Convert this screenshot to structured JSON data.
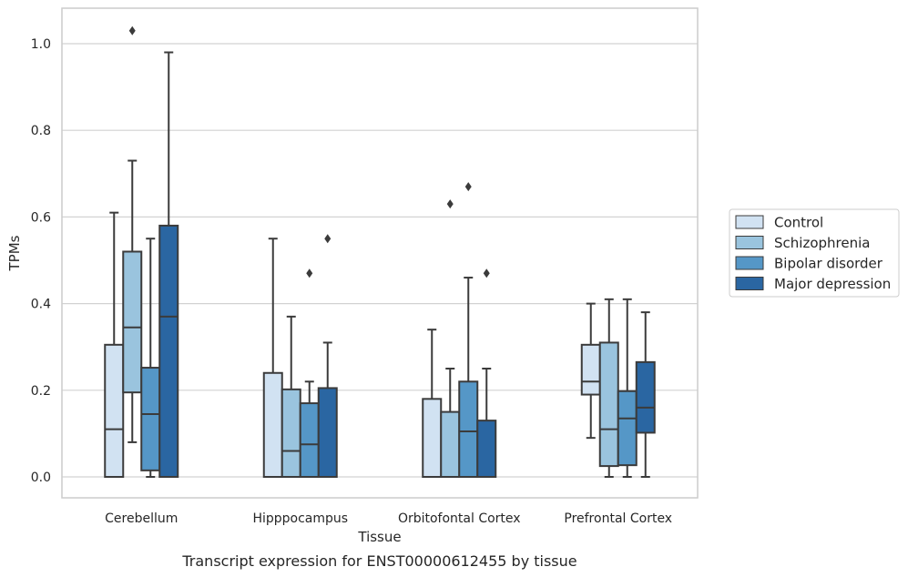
{
  "chart_data": {
    "type": "box",
    "caption": "Transcript expression for ENST00000612455 by tissue",
    "xlabel": "Tissue",
    "ylabel": "TPMs",
    "ylim": [
      -0.05,
      1.08
    ],
    "yticks": [
      0.0,
      0.2,
      0.4,
      0.6,
      0.8,
      1.0
    ],
    "ytick_labels": [
      "0.0",
      "0.2",
      "0.4",
      "0.6",
      "0.8",
      "1.0"
    ],
    "grid": "horizontal",
    "legend_position": "right",
    "categories": [
      "Cerebellum",
      "Hipppocampus",
      "Orbitofontal Cortex",
      "Prefrontal Cortex"
    ],
    "series": [
      {
        "name": "Control",
        "color": "#d1e2f2",
        "boxes": [
          {
            "whisker_low": 0.0,
            "q1": 0.0,
            "median": 0.11,
            "q3": 0.305,
            "whisker_high": 0.61,
            "outliers": []
          },
          {
            "whisker_low": 0.0,
            "q1": 0.0,
            "median": 0.0,
            "q3": 0.24,
            "whisker_high": 0.55,
            "outliers": []
          },
          {
            "whisker_low": 0.0,
            "q1": 0.0,
            "median": 0.0,
            "q3": 0.18,
            "whisker_high": 0.34,
            "outliers": []
          },
          {
            "whisker_low": 0.09,
            "q1": 0.19,
            "median": 0.22,
            "q3": 0.305,
            "whisker_high": 0.4,
            "outliers": []
          }
        ]
      },
      {
        "name": "Schizophrenia",
        "color": "#9ac4de",
        "boxes": [
          {
            "whisker_low": 0.08,
            "q1": 0.195,
            "median": 0.345,
            "q3": 0.52,
            "whisker_high": 0.73,
            "outliers": [
              1.03
            ]
          },
          {
            "whisker_low": 0.0,
            "q1": 0.0,
            "median": 0.06,
            "q3": 0.202,
            "whisker_high": 0.37,
            "outliers": []
          },
          {
            "whisker_low": 0.0,
            "q1": 0.0,
            "median": 0.0,
            "q3": 0.15,
            "whisker_high": 0.25,
            "outliers": [
              0.63
            ]
          },
          {
            "whisker_low": 0.0,
            "q1": 0.025,
            "median": 0.11,
            "q3": 0.31,
            "whisker_high": 0.41,
            "outliers": []
          }
        ]
      },
      {
        "name": "Bipolar disorder",
        "color": "#5597c7",
        "boxes": [
          {
            "whisker_low": 0.0,
            "q1": 0.015,
            "median": 0.145,
            "q3": 0.252,
            "whisker_high": 0.55,
            "outliers": []
          },
          {
            "whisker_low": 0.0,
            "q1": 0.0,
            "median": 0.075,
            "q3": 0.17,
            "whisker_high": 0.22,
            "outliers": [
              0.47
            ]
          },
          {
            "whisker_low": 0.0,
            "q1": 0.0,
            "median": 0.105,
            "q3": 0.22,
            "whisker_high": 0.46,
            "outliers": [
              0.67
            ]
          },
          {
            "whisker_low": 0.0,
            "q1": 0.027,
            "median": 0.135,
            "q3": 0.198,
            "whisker_high": 0.41,
            "outliers": []
          }
        ]
      },
      {
        "name": "Major depression",
        "color": "#2a66a2",
        "boxes": [
          {
            "whisker_low": 0.0,
            "q1": 0.0,
            "median": 0.37,
            "q3": 0.58,
            "whisker_high": 0.98,
            "outliers": []
          },
          {
            "whisker_low": 0.0,
            "q1": 0.0,
            "median": 0.0,
            "q3": 0.205,
            "whisker_high": 0.31,
            "outliers": [
              0.55
            ]
          },
          {
            "whisker_low": 0.0,
            "q1": 0.0,
            "median": 0.0,
            "q3": 0.13,
            "whisker_high": 0.25,
            "outliers": [
              0.47
            ]
          },
          {
            "whisker_low": 0.0,
            "q1": 0.102,
            "median": 0.16,
            "q3": 0.265,
            "whisker_high": 0.38,
            "outliers": []
          }
        ]
      }
    ]
  }
}
